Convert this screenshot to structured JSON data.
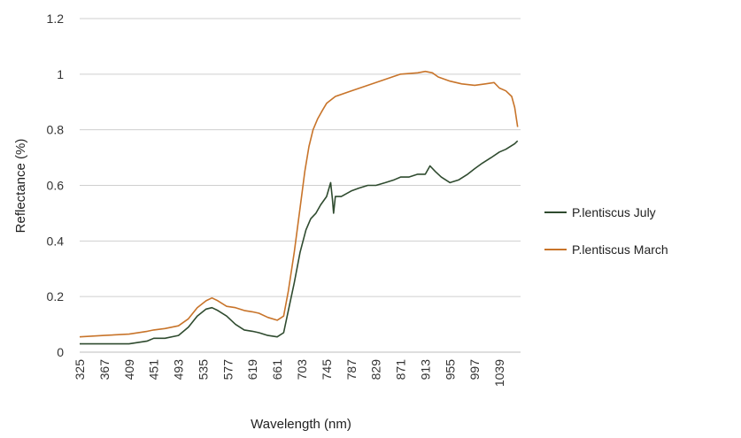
{
  "chart_data": {
    "type": "line",
    "xlabel": "Wavelength (nm)",
    "ylabel": "Reflectance (%)",
    "ylim": [
      0,
      1.2
    ],
    "yticks": [
      "0",
      "0.2",
      "0.4",
      "0.6",
      "0.8",
      "1",
      "1.2"
    ],
    "xticks": [
      "325",
      "367",
      "409",
      "451",
      "493",
      "535",
      "577",
      "619",
      "661",
      "703",
      "745",
      "787",
      "829",
      "871",
      "913",
      "955",
      "997",
      "1039"
    ],
    "xlim": [
      325,
      1075
    ],
    "grid": true,
    "legend_position": "right",
    "series": [
      {
        "name": "P.lentiscus July",
        "color": "#2f4b2f",
        "x": [
          325,
          367,
          409,
          440,
          451,
          470,
          493,
          510,
          525,
          540,
          550,
          560,
          575,
          590,
          605,
          619,
          630,
          645,
          661,
          672,
          680,
          690,
          700,
          710,
          718,
          727,
          735,
          745,
          752,
          755,
          757,
          760,
          770,
          787,
          800,
          815,
          829,
          845,
          860,
          871,
          885,
          900,
          913,
          921,
          930,
          940,
          955,
          970,
          985,
          997,
          1010,
          1025,
          1039,
          1050,
          1065,
          1070
        ],
        "y": [
          0.03,
          0.03,
          0.03,
          0.04,
          0.05,
          0.05,
          0.06,
          0.09,
          0.13,
          0.155,
          0.16,
          0.15,
          0.13,
          0.1,
          0.08,
          0.075,
          0.07,
          0.06,
          0.055,
          0.07,
          0.15,
          0.25,
          0.36,
          0.44,
          0.48,
          0.5,
          0.53,
          0.56,
          0.61,
          0.55,
          0.5,
          0.56,
          0.56,
          0.58,
          0.59,
          0.6,
          0.6,
          0.61,
          0.62,
          0.63,
          0.63,
          0.64,
          0.64,
          0.67,
          0.65,
          0.63,
          0.61,
          0.62,
          0.64,
          0.66,
          0.68,
          0.7,
          0.72,
          0.73,
          0.75,
          0.76
        ]
      },
      {
        "name": "P.lentiscus March",
        "color": "#c8742a",
        "x": [
          325,
          367,
          409,
          440,
          451,
          470,
          493,
          510,
          525,
          540,
          550,
          560,
          575,
          590,
          605,
          619,
          630,
          645,
          661,
          672,
          680,
          690,
          700,
          708,
          715,
          722,
          730,
          738,
          745,
          760,
          787,
          829,
          871,
          900,
          913,
          925,
          935,
          955,
          975,
          997,
          1015,
          1030,
          1039,
          1050,
          1060,
          1065,
          1070
        ],
        "y": [
          0.055,
          0.06,
          0.065,
          0.075,
          0.08,
          0.085,
          0.095,
          0.12,
          0.16,
          0.185,
          0.195,
          0.185,
          0.165,
          0.16,
          0.15,
          0.145,
          0.14,
          0.125,
          0.115,
          0.13,
          0.22,
          0.36,
          0.52,
          0.65,
          0.74,
          0.8,
          0.84,
          0.87,
          0.895,
          0.92,
          0.94,
          0.97,
          1.0,
          1.005,
          1.01,
          1.005,
          0.99,
          0.975,
          0.965,
          0.96,
          0.965,
          0.97,
          0.95,
          0.94,
          0.92,
          0.88,
          0.81
        ]
      }
    ]
  }
}
